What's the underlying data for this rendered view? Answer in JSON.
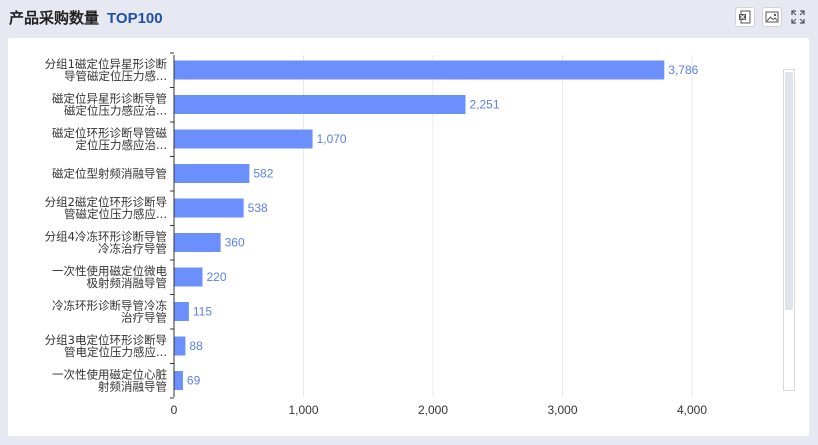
{
  "header": {
    "title": "产品采购数量",
    "subtitle": "TOP100"
  },
  "toolbar": {
    "icons": [
      "excel-export-icon",
      "image-export-icon",
      "fullscreen-icon"
    ]
  },
  "colors": {
    "bar": "#6b8ffd",
    "label": "#5b7fe8",
    "accent": "#1f4fa8"
  },
  "chart_data": {
    "type": "bar",
    "orientation": "horizontal",
    "categories": [
      [
        "分组1磁定位异星形诊断",
        "导管磁定位压力感..."
      ],
      [
        "磁定位异星形诊断导管",
        "磁定位压力感应治..."
      ],
      [
        "磁定位环形诊断导管磁",
        "定位压力感应治..."
      ],
      [
        "磁定位型射频消融导管"
      ],
      [
        "分组2磁定位环形诊断导",
        "管磁定位压力感应..."
      ],
      [
        "分组4冷冻环形诊断导管",
        "冷冻治疗导管"
      ],
      [
        "一次性使用磁定位微电",
        "极射频消融导管"
      ],
      [
        "冷冻环形诊断导管冷冻",
        "治疗导管"
      ],
      [
        "分组3电定位环形诊断导",
        "管电定位压力感应..."
      ],
      [
        "一次性使用磁定位心脏",
        "射频消融导管"
      ]
    ],
    "values": [
      3786,
      2251,
      1070,
      582,
      538,
      360,
      220,
      115,
      88,
      69
    ],
    "value_labels": [
      "3,786",
      "2,251",
      "1,070",
      "582",
      "538",
      "360",
      "220",
      "115",
      "88",
      "69"
    ],
    "xlim": [
      0,
      4000
    ],
    "xticks": [
      0,
      1000,
      2000,
      3000,
      4000
    ],
    "xtick_labels": [
      "0",
      "1,000",
      "2,000",
      "3,000",
      "4,000"
    ],
    "grid": true
  }
}
